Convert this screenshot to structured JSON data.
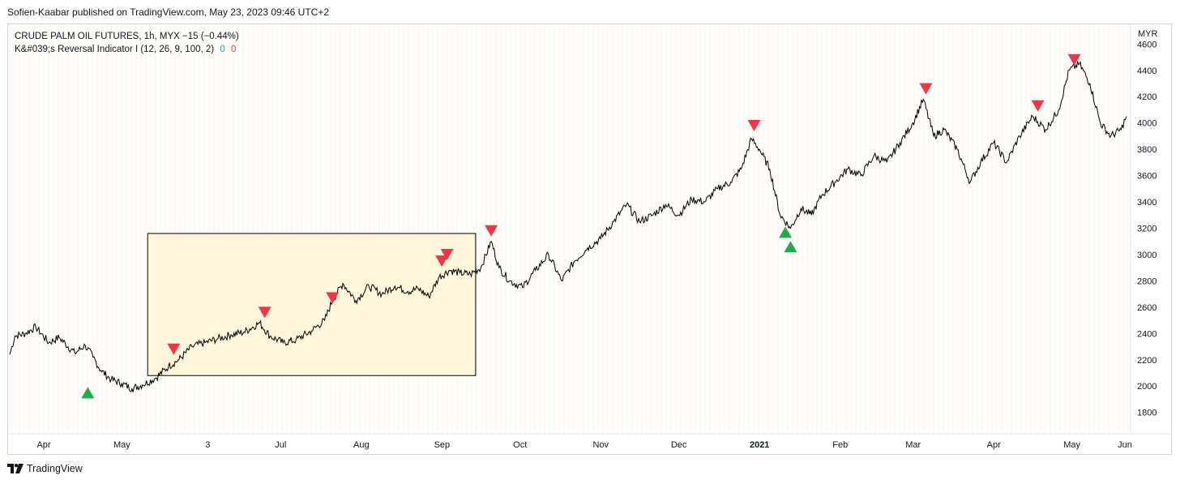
{
  "header": {
    "publish_line": "Sofien-Kaabar published on TradingView.com, May 23, 2023 09:46 UTC+2"
  },
  "legend": {
    "symbol_line": "CRUDE PALM OIL FUTURES, 1h, MYX  −15 (−0.44%)",
    "indicator_line": "K&#039;s Reversal Indicator I (12, 26, 9, 100, 2)",
    "indicator_val_1": "0",
    "indicator_val_2": "0"
  },
  "footer": {
    "brand": "TradingView",
    "logo_icon": "tradingview-logo-icon"
  },
  "colors": {
    "bearish_marker": "#f23645",
    "bullish_marker": "#22ab4a",
    "price_line": "#000000",
    "box_fill": "#fff6dc"
  },
  "chart_data": {
    "type": "line",
    "title": "CRUDE PALM OIL FUTURES, 1h, MYX",
    "y_unit": "MYR",
    "ylim": [
      1650,
      4750
    ],
    "y_ticks": [
      1800,
      2000,
      2200,
      2400,
      2600,
      2800,
      3000,
      3200,
      3400,
      3600,
      3800,
      4000,
      4200,
      4400,
      4600
    ],
    "x_ticks": [
      "Apr",
      "May",
      "3",
      "Jul",
      "Aug",
      "Sep",
      "Oct",
      "Nov",
      "Dec",
      "2021",
      "Feb",
      "Mar",
      "Apr",
      "May",
      "Jun"
    ],
    "x_bold_ticks": [
      "2021"
    ],
    "series": [
      {
        "name": "Price",
        "points": [
          [
            "Apr 1",
            2240
          ],
          [
            "Apr 3",
            2380
          ],
          [
            "Apr 7",
            2400
          ],
          [
            "Apr 11",
            2450
          ],
          [
            "Apr 16",
            2330
          ],
          [
            "Apr 20",
            2370
          ],
          [
            "Apr 26",
            2250
          ],
          [
            "Apr 30",
            2310
          ],
          [
            "May 3",
            2220
          ],
          [
            "May 6",
            2120
          ],
          [
            "May 10",
            2050
          ],
          [
            "May 14",
            2020
          ],
          [
            "May 18",
            1980
          ],
          [
            "May 22",
            2010
          ],
          [
            "May 27",
            2060
          ],
          [
            "Jun 1",
            2150
          ],
          [
            "Jun 5",
            2200
          ],
          [
            "Jun 10",
            2300
          ],
          [
            "Jun 15",
            2330
          ],
          [
            "Jun 20",
            2360
          ],
          [
            "Jun 25",
            2390
          ],
          [
            "Jun 30",
            2410
          ],
          [
            "Jul 6",
            2480
          ],
          [
            "Jul 10",
            2380
          ],
          [
            "Jul 15",
            2330
          ],
          [
            "Jul 20",
            2350
          ],
          [
            "Jul 26",
            2420
          ],
          [
            "Jul 31",
            2500
          ],
          [
            "Aug 3",
            2650
          ],
          [
            "Aug 7",
            2780
          ],
          [
            "Aug 12",
            2650
          ],
          [
            "Aug 17",
            2760
          ],
          [
            "Aug 22",
            2700
          ],
          [
            "Aug 27",
            2760
          ],
          [
            "Sep 1",
            2720
          ],
          [
            "Sep 5",
            2740
          ],
          [
            "Sep 9",
            2680
          ],
          [
            "Sep 13",
            2830
          ],
          [
            "Sep 17",
            2880
          ],
          [
            "Sep 21",
            2860
          ],
          [
            "Sep 25",
            2850
          ],
          [
            "Sep 29",
            2900
          ],
          [
            "Oct 3",
            3100
          ],
          [
            "Oct 6",
            2900
          ],
          [
            "Oct 10",
            2800
          ],
          [
            "Oct 15",
            2750
          ],
          [
            "Oct 20",
            2880
          ],
          [
            "Oct 25",
            3000
          ],
          [
            "Oct 30",
            2800
          ],
          [
            "Nov 4",
            2950
          ],
          [
            "Nov 9",
            3050
          ],
          [
            "Nov 14",
            3120
          ],
          [
            "Nov 19",
            3250
          ],
          [
            "Nov 24",
            3380
          ],
          [
            "Nov 29",
            3250
          ],
          [
            "Dec 4",
            3300
          ],
          [
            "Dec 9",
            3380
          ],
          [
            "Dec 14",
            3300
          ],
          [
            "Dec 19",
            3420
          ],
          [
            "Dec 24",
            3400
          ],
          [
            "Dec 29",
            3500
          ],
          [
            "Jan 3",
            3550
          ],
          [
            "Jan 7",
            3650
          ],
          [
            "Jan 11",
            3880
          ],
          [
            "Jan 14",
            3800
          ],
          [
            "Jan 18",
            3650
          ],
          [
            "Jan 22",
            3300
          ],
          [
            "Jan 26",
            3200
          ],
          [
            "Jan 30",
            3350
          ],
          [
            "Feb 3",
            3300
          ],
          [
            "Feb 7",
            3450
          ],
          [
            "Feb 12",
            3550
          ],
          [
            "Feb 17",
            3650
          ],
          [
            "Feb 22",
            3600
          ],
          [
            "Feb 27",
            3750
          ],
          [
            "Mar 4",
            3700
          ],
          [
            "Mar 9",
            3850
          ],
          [
            "Mar 14",
            4000
          ],
          [
            "Mar 18",
            4180
          ],
          [
            "Mar 22",
            3900
          ],
          [
            "Mar 26",
            3950
          ],
          [
            "Mar 31",
            3800
          ],
          [
            "Apr 5",
            3550
          ],
          [
            "Apr 9",
            3700
          ],
          [
            "Apr 14",
            3850
          ],
          [
            "Apr 19",
            3700
          ],
          [
            "Apr 24",
            3900
          ],
          [
            "Apr 29",
            4050
          ],
          [
            "May 4",
            3950
          ],
          [
            "May 9",
            4100
          ],
          [
            "May 13",
            4400
          ],
          [
            "May 17",
            4450
          ],
          [
            "May 21",
            4300
          ],
          [
            "May 25",
            4000
          ],
          [
            "May 29",
            3900
          ],
          [
            "Jun 2",
            3950
          ],
          [
            "Jun 4",
            4050
          ]
        ]
      }
    ],
    "annotations": [
      {
        "type": "marker",
        "kind": "bullish",
        "date": "May 1",
        "price": 1950
      },
      {
        "type": "marker",
        "kind": "bearish",
        "date": "Jun 3",
        "price": 2280
      },
      {
        "type": "marker",
        "kind": "bearish",
        "date": "Jul 8",
        "price": 2560
      },
      {
        "type": "marker",
        "kind": "bearish",
        "date": "Aug 3",
        "price": 2670
      },
      {
        "type": "marker",
        "kind": "bearish",
        "date": "Sep 14",
        "price": 2950
      },
      {
        "type": "marker",
        "kind": "bearish",
        "date": "Sep 16",
        "price": 3000
      },
      {
        "type": "marker",
        "kind": "bearish",
        "date": "Oct 3",
        "price": 3180
      },
      {
        "type": "marker",
        "kind": "bearish",
        "date": "Jan 12",
        "price": 3980
      },
      {
        "type": "marker",
        "kind": "bullish",
        "date": "Jan 24",
        "price": 3170
      },
      {
        "type": "marker",
        "kind": "bullish",
        "date": "Jan 26",
        "price": 3060
      },
      {
        "type": "marker",
        "kind": "bearish",
        "date": "Mar 19",
        "price": 4260
      },
      {
        "type": "marker",
        "kind": "bearish",
        "date": "May 1",
        "price": 4130
      },
      {
        "type": "marker",
        "kind": "bearish",
        "date": "May 15",
        "price": 4480
      },
      {
        "type": "rectangle",
        "from_date": "May 24",
        "to_date": "Sep 27",
        "from_price": 2080,
        "to_price": 3160
      }
    ]
  }
}
